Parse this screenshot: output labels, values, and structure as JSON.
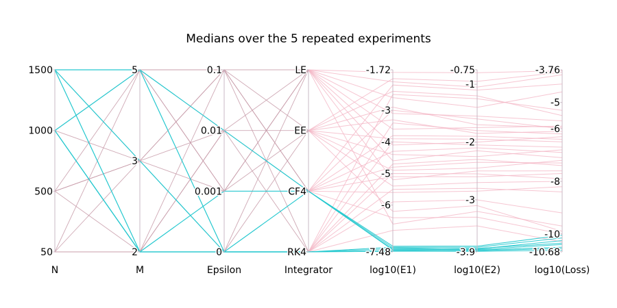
{
  "chart_data": {
    "type": "parallel-coordinates",
    "title": "Medians over the 5 repeated experiments",
    "colors": {
      "highlight": "#25c8cf",
      "default": "#f4b6c6",
      "discrete_line": "#c79aa8",
      "axis": "#c8b8c4"
    },
    "axes": [
      {
        "name": "N",
        "ticks": [
          {
            "value": 50,
            "label": "50"
          },
          {
            "value": 500,
            "label": "500"
          },
          {
            "value": 1000,
            "label": "1000"
          },
          {
            "value": 1500,
            "label": "1500"
          }
        ],
        "range": [
          50,
          1500
        ]
      },
      {
        "name": "M",
        "ticks": [
          {
            "value": 2,
            "label": "2"
          },
          {
            "value": 3,
            "label": "3"
          },
          {
            "value": 5,
            "label": "5"
          }
        ],
        "range": [
          2,
          5
        ]
      },
      {
        "name": "Epsilon",
        "categories": [
          "0",
          "0.001",
          "0.01",
          "0.1"
        ]
      },
      {
        "name": "Integrator",
        "categories": [
          "RK4",
          "CF4",
          "EE",
          "LE"
        ]
      },
      {
        "name": "log10(E1)",
        "ticks": [
          {
            "value": -7.48,
            "label": "-7.48"
          },
          {
            "value": -6,
            "label": "-6"
          },
          {
            "value": -5,
            "label": "-5"
          },
          {
            "value": -4,
            "label": "-4"
          },
          {
            "value": -3,
            "label": "-3"
          },
          {
            "value": -1.72,
            "label": "-1.72"
          }
        ],
        "range": [
          -7.48,
          -1.72
        ]
      },
      {
        "name": "log10(E2)",
        "ticks": [
          {
            "value": -3.9,
            "label": "-3.9"
          },
          {
            "value": -3,
            "label": "-3"
          },
          {
            "value": -2,
            "label": "-2"
          },
          {
            "value": -1,
            "label": "-1"
          },
          {
            "value": -0.75,
            "label": "-0.75"
          }
        ],
        "range": [
          -3.9,
          -0.75
        ]
      },
      {
        "name": "log10(Loss)",
        "ticks": [
          {
            "value": -10.68,
            "label": "-10.68"
          },
          {
            "value": -10,
            "label": "-10"
          },
          {
            "value": -8,
            "label": "-8"
          },
          {
            "value": -6,
            "label": "-6"
          },
          {
            "value": -5,
            "label": "-5"
          },
          {
            "value": -3.76,
            "label": "-3.76"
          }
        ],
        "range": [
          -10.68,
          -3.76
        ]
      }
    ],
    "discrete_series": [
      {
        "group": "highlight",
        "N": 1500,
        "M": 5,
        "Epsilon": "0.01",
        "Integrator": "CF4"
      },
      {
        "group": "highlight",
        "N": 1500,
        "M": 2,
        "Epsilon": "0",
        "Integrator": "RK4"
      },
      {
        "group": "highlight",
        "N": 1500,
        "M": 3,
        "Epsilon": "0",
        "Integrator": "CF4"
      },
      {
        "group": "highlight",
        "N": 1000,
        "M": 5,
        "Epsilon": "0",
        "Integrator": "RK4"
      },
      {
        "group": "highlight",
        "N": 1000,
        "M": 2,
        "Epsilon": "0.001",
        "Integrator": "CF4"
      },
      {
        "group": "highlight",
        "N": 1000,
        "M": 2,
        "Epsilon": "0",
        "Integrator": "RK4"
      },
      {
        "group": "default",
        "N": 1500,
        "M": 5,
        "Epsilon": "0.1",
        "Integrator": "LE"
      },
      {
        "group": "default",
        "N": 1500,
        "M": 5,
        "Epsilon": "0.001",
        "Integrator": "EE"
      },
      {
        "group": "default",
        "N": 1000,
        "M": 3,
        "Epsilon": "0.1",
        "Integrator": "EE"
      },
      {
        "group": "default",
        "N": 1000,
        "M": 5,
        "Epsilon": "0.01",
        "Integrator": "RK4"
      },
      {
        "group": "default",
        "N": 500,
        "M": 5,
        "Epsilon": "0.1",
        "Integrator": "CF4"
      },
      {
        "group": "default",
        "N": 500,
        "M": 3,
        "Epsilon": "0.001",
        "Integrator": "LE"
      },
      {
        "group": "default",
        "N": 500,
        "M": 2,
        "Epsilon": "0.01",
        "Integrator": "EE"
      },
      {
        "group": "default",
        "N": 50,
        "M": 5,
        "Epsilon": "0.001",
        "Integrator": "LE"
      },
      {
        "group": "default",
        "N": 50,
        "M": 3,
        "Epsilon": "0.1",
        "Integrator": "RK4"
      },
      {
        "group": "default",
        "N": 50,
        "M": 2,
        "Epsilon": "0.01",
        "Integrator": "CF4"
      },
      {
        "group": "default",
        "N": 50,
        "M": 2,
        "Epsilon": "0",
        "Integrator": "LE"
      },
      {
        "group": "default",
        "N": 1500,
        "M": 3,
        "Epsilon": "0.01",
        "Integrator": "LE"
      },
      {
        "group": "default",
        "N": 1000,
        "M": 2,
        "Epsilon": "0.1",
        "Integrator": "CF4"
      },
      {
        "group": "default",
        "N": 500,
        "M": 3,
        "Epsilon": "0",
        "Integrator": "EE"
      }
    ],
    "continuous_series": [
      {
        "group": "highlight",
        "Integrator": "CF4",
        "E1": -7.3,
        "E2": -3.8,
        "Loss": -10.05
      },
      {
        "group": "highlight",
        "Integrator": "CF4",
        "E1": -7.35,
        "E2": -3.85,
        "Loss": -10.25
      },
      {
        "group": "highlight",
        "Integrator": "CF4",
        "E1": -7.4,
        "E2": -3.86,
        "Loss": -10.4
      },
      {
        "group": "highlight",
        "Integrator": "CF4",
        "E1": -7.42,
        "E2": -3.88,
        "Loss": -10.55
      },
      {
        "group": "highlight",
        "Integrator": "RK4",
        "E1": -7.33,
        "E2": -3.82,
        "Loss": -10.15
      },
      {
        "group": "highlight",
        "Integrator": "RK4",
        "E1": -7.38,
        "E2": -3.84,
        "Loss": -10.35
      },
      {
        "group": "highlight",
        "Integrator": "RK4",
        "E1": -7.44,
        "E2": -3.87,
        "Loss": -10.5
      },
      {
        "group": "highlight",
        "Integrator": "RK4",
        "E1": -7.46,
        "E2": -3.89,
        "Loss": -10.62
      },
      {
        "group": "default",
        "Integrator": "LE",
        "E1": -1.8,
        "E2": -0.8,
        "Loss": -3.8
      },
      {
        "group": "default",
        "Integrator": "LE",
        "E1": -2.1,
        "E2": -1.05,
        "Loss": -3.95
      },
      {
        "group": "default",
        "Integrator": "LE",
        "E1": -2.6,
        "E2": -1.4,
        "Loss": -4.6
      },
      {
        "group": "default",
        "Integrator": "LE",
        "E1": -3.1,
        "E2": -1.55,
        "Loss": -5.7
      },
      {
        "group": "default",
        "Integrator": "LE",
        "E1": -3.6,
        "E2": -1.75,
        "Loss": -5.9
      },
      {
        "group": "default",
        "Integrator": "LE",
        "E1": -4.1,
        "E2": -2.0,
        "Loss": -6.3
      },
      {
        "group": "default",
        "Integrator": "LE",
        "E1": -4.6,
        "E2": -2.15,
        "Loss": -7.1
      },
      {
        "group": "default",
        "Integrator": "LE",
        "E1": -5.2,
        "E2": -2.5,
        "Loss": -7.6
      },
      {
        "group": "default",
        "Integrator": "LE",
        "E1": -6.6,
        "E2": -3.2,
        "Loss": -9.7
      },
      {
        "group": "default",
        "Integrator": "EE",
        "E1": -2.0,
        "E2": -0.95,
        "Loss": -3.85
      },
      {
        "group": "default",
        "Integrator": "EE",
        "E1": -2.4,
        "E2": -1.2,
        "Loss": -5.5
      },
      {
        "group": "default",
        "Integrator": "EE",
        "E1": -2.9,
        "E2": -1.7,
        "Loss": -5.95
      },
      {
        "group": "default",
        "Integrator": "EE",
        "E1": -3.3,
        "E2": -1.85,
        "Loss": -6.1
      },
      {
        "group": "default",
        "Integrator": "EE",
        "E1": -3.9,
        "E2": -1.95,
        "Loss": -6.5
      },
      {
        "group": "default",
        "Integrator": "EE",
        "E1": -4.4,
        "E2": -2.25,
        "Loss": -6.8
      },
      {
        "group": "default",
        "Integrator": "EE",
        "E1": -4.9,
        "E2": -2.45,
        "Loss": -7.2
      },
      {
        "group": "default",
        "Integrator": "EE",
        "E1": -5.4,
        "E2": -2.7,
        "Loss": -8.0
      },
      {
        "group": "default",
        "Integrator": "EE",
        "E1": -6.2,
        "E2": -3.1,
        "Loss": -9.9
      },
      {
        "group": "default",
        "Integrator": "CF4",
        "E1": -2.2,
        "E2": -1.1,
        "Loss": -4.3
      },
      {
        "group": "default",
        "Integrator": "CF4",
        "E1": -3.0,
        "E2": -1.6,
        "Loss": -6.0
      },
      {
        "group": "default",
        "Integrator": "CF4",
        "E1": -3.8,
        "E2": -1.9,
        "Loss": -6.4
      },
      {
        "group": "default",
        "Integrator": "CF4",
        "E1": -4.3,
        "E2": -2.1,
        "Loss": -6.9
      },
      {
        "group": "default",
        "Integrator": "CF4",
        "E1": -4.8,
        "E2": -2.35,
        "Loss": -7.3
      },
      {
        "group": "default",
        "Integrator": "CF4",
        "E1": -5.1,
        "E2": -2.6,
        "Loss": -7.7
      },
      {
        "group": "default",
        "Integrator": "CF4",
        "E1": -5.6,
        "E2": -2.85,
        "Loss": -8.2
      },
      {
        "group": "default",
        "Integrator": "CF4",
        "E1": -6.4,
        "E2": -3.3,
        "Loss": -10.0
      },
      {
        "group": "default",
        "Integrator": "RK4",
        "E1": -2.5,
        "E2": -1.25,
        "Loss": -5.3
      },
      {
        "group": "default",
        "Integrator": "RK4",
        "E1": -3.4,
        "E2": -1.8,
        "Loss": -6.2
      },
      {
        "group": "default",
        "Integrator": "RK4",
        "E1": -4.0,
        "E2": -2.05,
        "Loss": -6.7
      },
      {
        "group": "default",
        "Integrator": "RK4",
        "E1": -4.7,
        "E2": -2.3,
        "Loss": -7.4
      },
      {
        "group": "default",
        "Integrator": "RK4",
        "E1": -5.0,
        "E2": -2.55,
        "Loss": -7.9
      },
      {
        "group": "default",
        "Integrator": "RK4",
        "E1": -5.5,
        "E2": -2.8,
        "Loss": -8.4
      },
      {
        "group": "default",
        "Integrator": "RK4",
        "E1": -5.9,
        "E2": -3.0,
        "Loss": -9.2
      },
      {
        "group": "default",
        "Integrator": "RK4",
        "E1": -6.8,
        "E2": -3.45,
        "Loss": -10.3
      }
    ]
  }
}
